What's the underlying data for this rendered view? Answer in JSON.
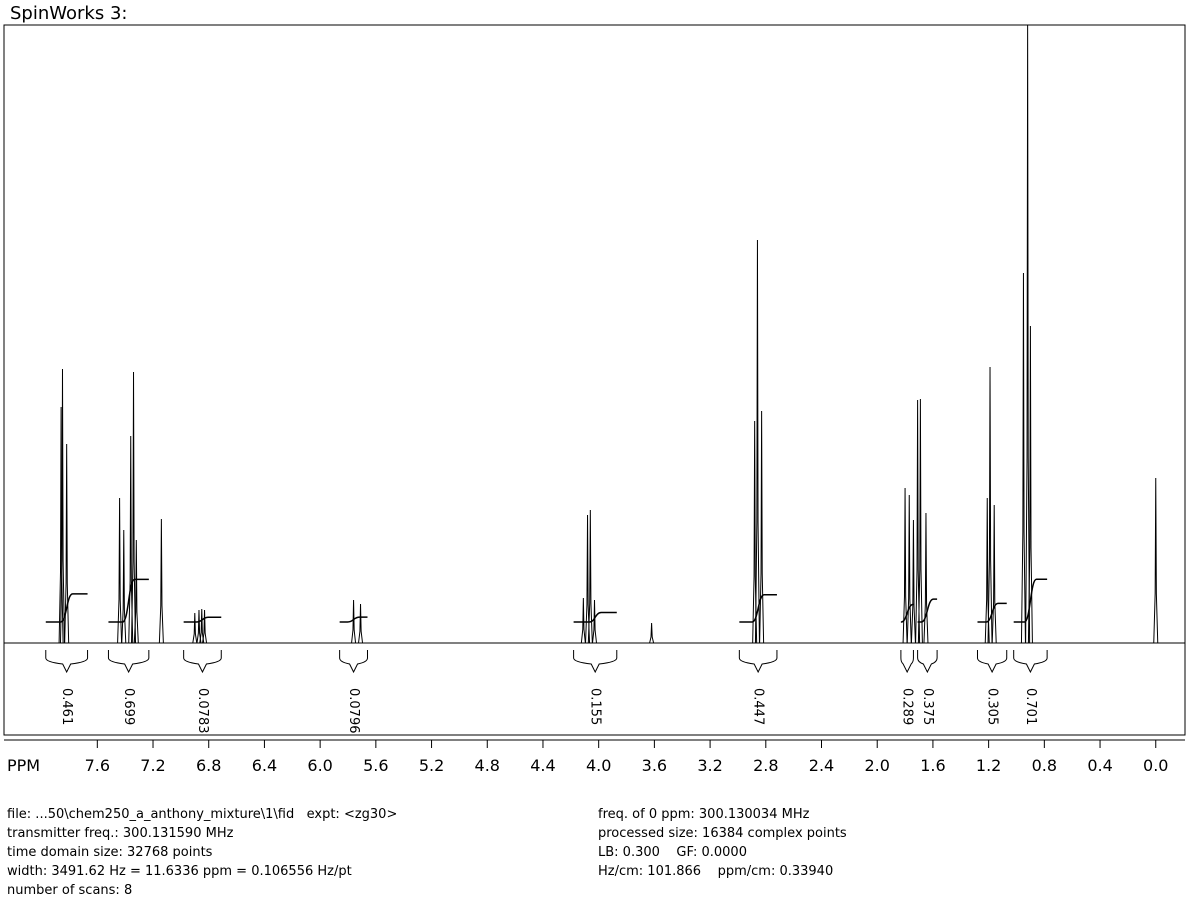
{
  "chart_data": {
    "type": "nmr",
    "title": "SpinWorks 3:",
    "xlabel": "PPM",
    "xlim": [
      8.27,
      -0.21
    ],
    "ylim": [
      0,
      618
    ],
    "xticks": [
      7.6,
      7.2,
      6.8,
      6.4,
      {
        "value": 6,
        "label": "6.0"
      },
      5.6,
      5.2,
      4.8,
      4.4,
      {
        "value": 4,
        "label": "4.0"
      },
      3.6,
      3.2,
      2.8,
      2.4,
      {
        "value": 2,
        "label": "2.0"
      },
      1.6,
      1.2,
      0.8,
      0.4,
      {
        "value": 0,
        "label": "0.0"
      }
    ],
    "color": "#000000",
    "peaks": {
      "x": [
        7.86,
        7.85,
        7.82,
        7.44,
        7.41,
        7.36,
        7.34,
        7.32,
        7.14,
        6.9,
        6.87,
        6.85,
        6.83,
        5.76,
        5.71,
        4.11,
        4.08,
        4.06,
        4.03,
        3.62,
        2.88,
        2.86,
        2.83,
        1.8,
        1.77,
        1.74,
        1.71,
        1.69,
        1.65,
        1.21,
        1.19,
        1.16,
        0.95,
        0.92,
        0.9,
        0.0
      ],
      "values": [
        236,
        274,
        199,
        145,
        113,
        207,
        271,
        103,
        124,
        30,
        33,
        34,
        33,
        43,
        39,
        45,
        128,
        133,
        43,
        20,
        222,
        403,
        232,
        155,
        148,
        123,
        243,
        244,
        130,
        145,
        276,
        138,
        370,
        618,
        317,
        165
      ]
    },
    "integrals": {
      "from": [
        7.97,
        7.52,
        6.98,
        5.86,
        4.18,
        2.99,
        1.83,
        1.71,
        1.28,
        1.02
      ],
      "to": [
        7.67,
        7.23,
        6.71,
        5.66,
        3.87,
        2.72,
        1.74,
        1.57,
        1.07,
        0.78
      ],
      "values": [
        0.461,
        0.699,
        0.0783,
        0.0796,
        0.155,
        0.447,
        0.289,
        0.375,
        0.305,
        0.701
      ]
    },
    "footer": {
      "left": [
        "file: ...50\\chem250_a_anthony_mixture\\1\\fid   expt: <zg30>",
        "transmitter freq.: 300.131590 MHz",
        "time domain size: 32768 points",
        "width: 3491.62 Hz = 11.6336 ppm = 0.106556 Hz/pt",
        "number of scans: 8"
      ],
      "right": [
        "freq. of 0 ppm: 300.130034 MHz",
        "processed size: 16384 complex points",
        "LB: 0.300    GF: 0.0000",
        "Hz/cm: 101.866    ppm/cm: 0.33940"
      ]
    }
  }
}
